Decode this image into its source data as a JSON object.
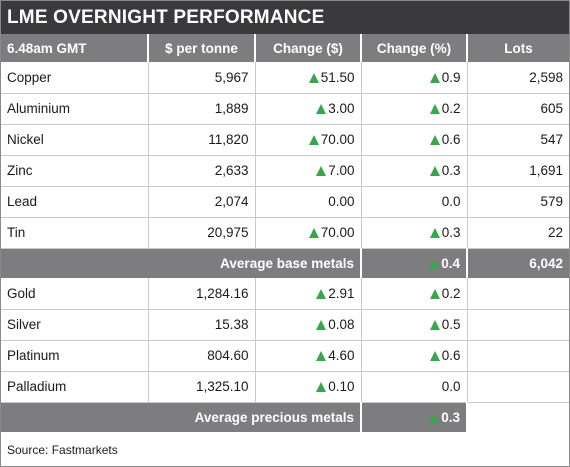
{
  "title": "LME OVERNIGHT PERFORMANCE",
  "header": {
    "time": "6.48am GMT",
    "price": "$ per tonne",
    "change_abs": "Change ($)",
    "change_pct": "Change (%)",
    "lots": "Lots"
  },
  "base_metals": [
    {
      "name": "Copper",
      "price": "5,967",
      "change_abs": "51.50",
      "change_abs_up": true,
      "change_pct": "0.9",
      "change_pct_up": true,
      "lots": "2,598"
    },
    {
      "name": "Aluminium",
      "price": "1,889",
      "change_abs": "3.00",
      "change_abs_up": true,
      "change_pct": "0.2",
      "change_pct_up": true,
      "lots": "605"
    },
    {
      "name": "Nickel",
      "price": "11,820",
      "change_abs": "70.00",
      "change_abs_up": true,
      "change_pct": "0.6",
      "change_pct_up": true,
      "lots": "547"
    },
    {
      "name": "Zinc",
      "price": "2,633",
      "change_abs": "7.00",
      "change_abs_up": true,
      "change_pct": "0.3",
      "change_pct_up": true,
      "lots": "1,691"
    },
    {
      "name": "Lead",
      "price": "2,074",
      "change_abs": "0.00",
      "change_abs_up": false,
      "change_pct": "0.0",
      "change_pct_up": false,
      "lots": "579"
    },
    {
      "name": "Tin",
      "price": "20,975",
      "change_abs": "70.00",
      "change_abs_up": true,
      "change_pct": "0.3",
      "change_pct_up": true,
      "lots": "22"
    }
  ],
  "avg_base": {
    "label": "Average base metals",
    "change_pct": "0.4",
    "change_pct_up": true,
    "lots": "6,042"
  },
  "precious_metals": [
    {
      "name": "Gold",
      "price": "1,284.16",
      "change_abs": "2.91",
      "change_abs_up": true,
      "change_pct": "0.2",
      "change_pct_up": true,
      "lots": ""
    },
    {
      "name": "Silver",
      "price": "15.38",
      "change_abs": "0.08",
      "change_abs_up": true,
      "change_pct": "0.5",
      "change_pct_up": true,
      "lots": ""
    },
    {
      "name": "Platinum",
      "price": "804.60",
      "change_abs": "4.60",
      "change_abs_up": true,
      "change_pct": "0.6",
      "change_pct_up": true,
      "lots": ""
    },
    {
      "name": "Palladium",
      "price": "1,325.10",
      "change_abs": "0.10",
      "change_abs_up": true,
      "change_pct": "0.0",
      "change_pct_up": false,
      "lots": ""
    }
  ],
  "avg_precious": {
    "label": "Average precious metals",
    "change_pct": "0.3",
    "change_pct_up": true
  },
  "source": "Source: Fastmarkets",
  "colors": {
    "header_bg": "#3a3a3c",
    "row_header_bg": "#7d7d80",
    "up_arrow": "#38a64a"
  },
  "icons": {
    "up": "up-triangle-icon"
  }
}
